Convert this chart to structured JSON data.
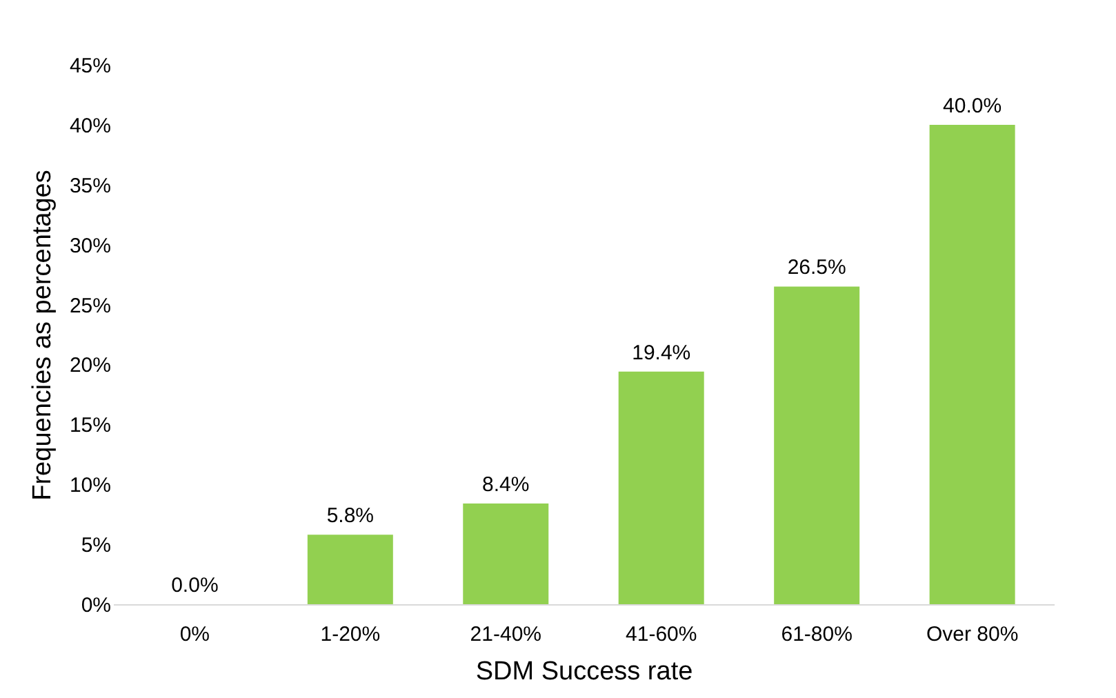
{
  "chart_data": {
    "type": "bar",
    "xlabel": "SDM Success rate",
    "ylabel": "Frequencies as percentages",
    "categories": [
      "0%",
      "1-20%",
      "21-40%",
      "41-60%",
      "61-80%",
      "Over 80%"
    ],
    "values": [
      0.0,
      5.8,
      8.4,
      19.4,
      26.5,
      40.0
    ],
    "value_labels": [
      "0.0%",
      "5.8%",
      "8.4%",
      "19.4%",
      "26.5%",
      "40.0%"
    ],
    "color": "#92d050",
    "ylim": [
      0,
      45
    ],
    "yticks": [
      {
        "value": 0,
        "label": "0%"
      },
      {
        "value": 5,
        "label": "5%"
      },
      {
        "value": 10,
        "label": "10%"
      },
      {
        "value": 15,
        "label": "15%"
      },
      {
        "value": 20,
        "label": "20%"
      },
      {
        "value": 25,
        "label": "25%"
      },
      {
        "value": 30,
        "label": "30%"
      },
      {
        "value": 35,
        "label": "35%"
      },
      {
        "value": 40,
        "label": "40%"
      },
      {
        "value": 45,
        "label": "45%"
      }
    ],
    "grid": false
  }
}
